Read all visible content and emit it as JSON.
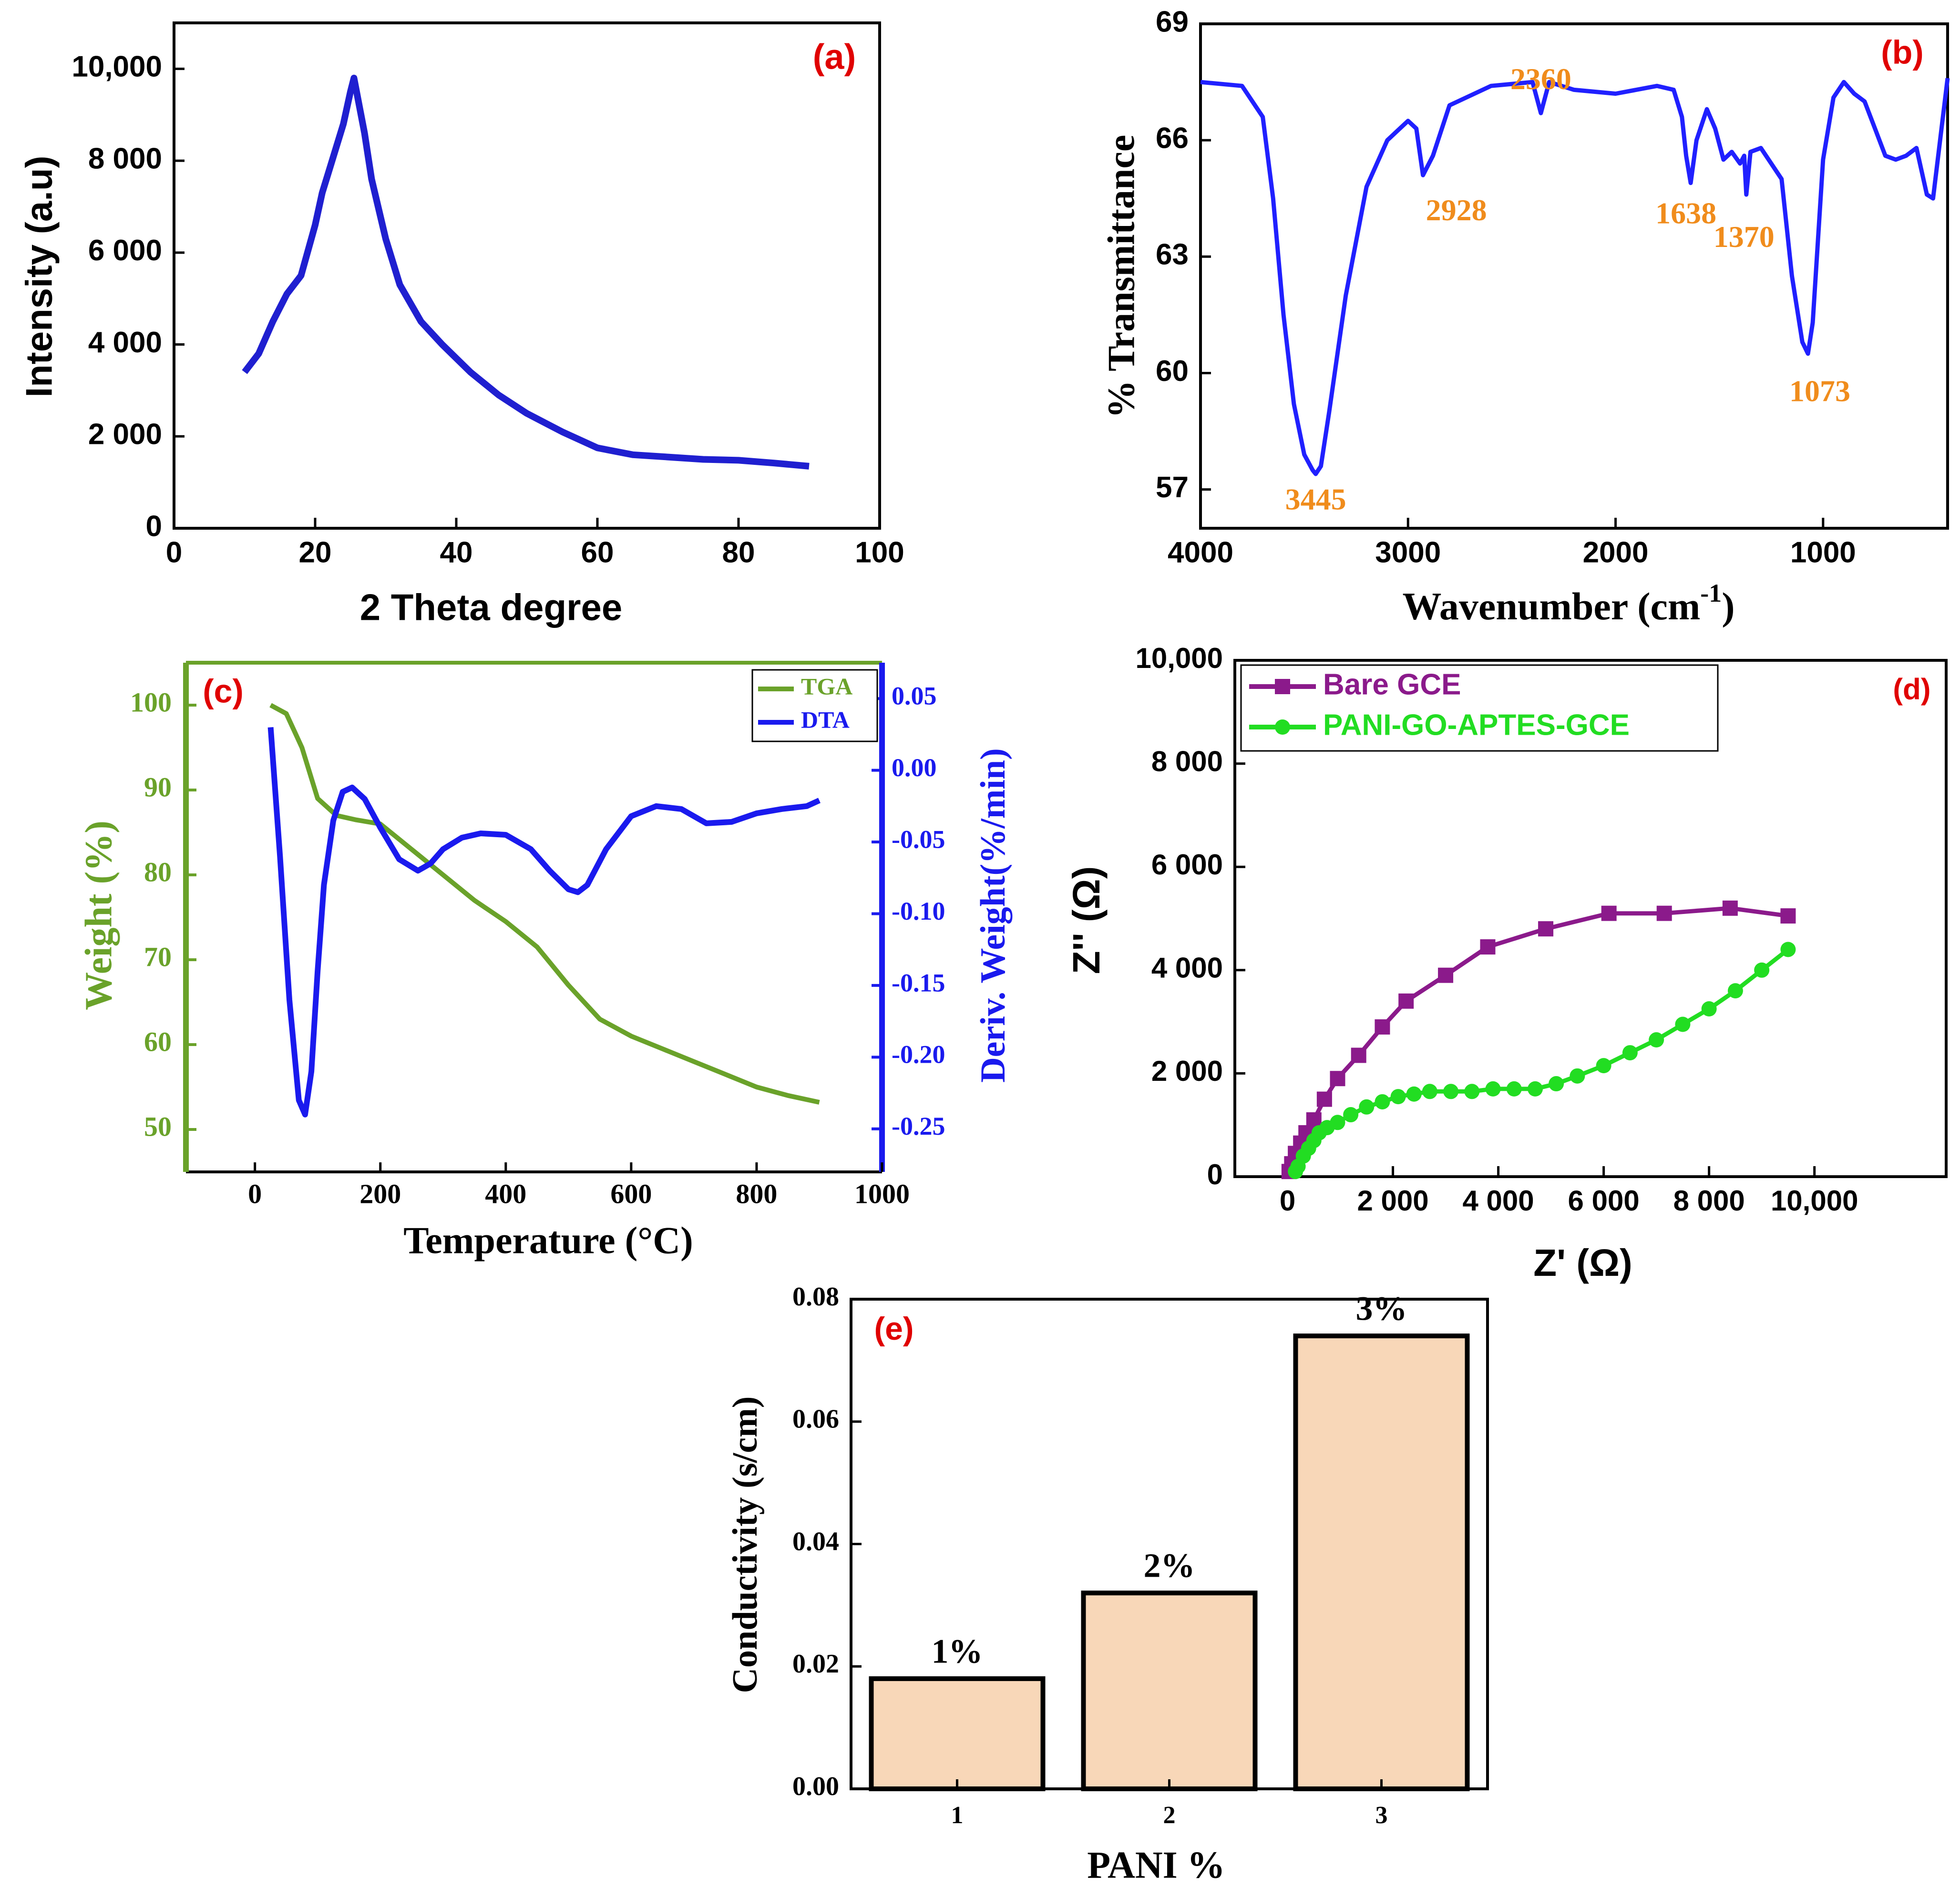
{
  "chart_data": [
    {
      "panel_label": "(a)",
      "type": "line",
      "xlabel": "2 Theta degree",
      "ylabel": "Intensity (a.u)",
      "xlim": [
        0,
        100
      ],
      "ylim": [
        0,
        11000
      ],
      "xticks": [
        0,
        20,
        40,
        60,
        80,
        100
      ],
      "xtick_labels": [
        "0",
        "20",
        "40",
        "60",
        "80",
        "100"
      ],
      "yticks": [
        0,
        2000,
        4000,
        6000,
        8000,
        10000
      ],
      "ytick_labels": [
        "0",
        "2 000",
        "4 000",
        "6 000",
        "8 000",
        "10,000"
      ],
      "series": [
        {
          "color": "#1f1fd0",
          "x": [
            10,
            12,
            14,
            16,
            18,
            20,
            21,
            22,
            23,
            24,
            25,
            25.5,
            26,
            27,
            28,
            30,
            32,
            35,
            38,
            42,
            46,
            50,
            55,
            60,
            65,
            70,
            75,
            80,
            85,
            90
          ],
          "y": [
            3400,
            3800,
            4500,
            5100,
            5500,
            6600,
            7300,
            7800,
            8300,
            8800,
            9500,
            9800,
            9400,
            8600,
            7600,
            6300,
            5300,
            4500,
            4000,
            3400,
            2900,
            2500,
            2100,
            1750,
            1600,
            1550,
            1500,
            1480,
            1420,
            1350
          ]
        }
      ]
    },
    {
      "panel_label": "(b)",
      "type": "line",
      "xlabel": "Wavenumber (cm",
      "xlabel_sup": "-1",
      "xlabel_end": ")",
      "ylabel": "% Transmittance",
      "xlim": [
        4000,
        400
      ],
      "ylim": [
        56,
        69
      ],
      "xticks": [
        4000,
        3000,
        2000,
        1000
      ],
      "xtick_labels": [
        "4000",
        "3000",
        "2000",
        "1000"
      ],
      "yticks": [
        57,
        60,
        63,
        66,
        69
      ],
      "ytick_labels": [
        "57",
        "60",
        "63",
        "66",
        "69"
      ],
      "series": [
        {
          "color": "#2020ff",
          "x": [
            4000,
            3800,
            3700,
            3650,
            3600,
            3550,
            3500,
            3460,
            3445,
            3420,
            3380,
            3300,
            3200,
            3100,
            3000,
            2960,
            2928,
            2880,
            2800,
            2600,
            2400,
            2360,
            2320,
            2200,
            2000,
            1800,
            1720,
            1680,
            1660,
            1638,
            1610,
            1560,
            1520,
            1480,
            1440,
            1400,
            1380,
            1370,
            1350,
            1300,
            1200,
            1150,
            1100,
            1073,
            1050,
            1000,
            950,
            900,
            850,
            800,
            750,
            700,
            650,
            600,
            550,
            500,
            470,
            400
          ],
          "y": [
            67.5,
            67.4,
            66.6,
            64.5,
            61.5,
            59.2,
            57.9,
            57.5,
            57.4,
            57.6,
            59.0,
            62.0,
            64.8,
            66.0,
            66.5,
            66.3,
            65.1,
            65.6,
            66.9,
            67.4,
            67.5,
            66.7,
            67.5,
            67.3,
            67.2,
            67.4,
            67.3,
            66.6,
            65.6,
            64.9,
            66.0,
            66.8,
            66.3,
            65.5,
            65.7,
            65.4,
            65.6,
            64.6,
            65.7,
            65.8,
            65.0,
            62.5,
            60.8,
            60.5,
            61.3,
            65.5,
            67.1,
            67.5,
            67.2,
            67.0,
            66.3,
            65.6,
            65.5,
            65.6,
            65.8,
            64.6,
            64.5,
            67.6
          ]
        }
      ],
      "annotations": [
        {
          "x": 3445,
          "y": 57.4,
          "text": "3445"
        },
        {
          "x": 2928,
          "y": 65.1,
          "text": "2928"
        },
        {
          "x": 2360,
          "y": 66.7,
          "text": "2360"
        },
        {
          "x": 1638,
          "y": 64.9,
          "text": "1638"
        },
        {
          "x": 1370,
          "y": 64.6,
          "text": "1370"
        },
        {
          "x": 1073,
          "y": 60.5,
          "text": "1073"
        }
      ]
    },
    {
      "panel_label": "(c)",
      "type": "line",
      "xlabel": "Temperature (°C)",
      "ylabel": "Weight (%)",
      "ylabel_right": "Deriv. Weight(%/min)",
      "xlim": [
        -110,
        1000
      ],
      "ylim": [
        45,
        105
      ],
      "ylim_right": [
        -0.28,
        0.075
      ],
      "xticks": [
        0,
        200,
        400,
        600,
        800,
        1000
      ],
      "xtick_labels": [
        "0",
        "200",
        "400",
        "600",
        "800",
        "1000"
      ],
      "yticks": [
        50,
        60,
        70,
        80,
        90,
        100
      ],
      "ytick_labels": [
        "50",
        "60",
        "70",
        "80",
        "90",
        "100"
      ],
      "yticks_right": [
        -0.25,
        -0.2,
        -0.15,
        -0.1,
        -0.05,
        0.0,
        0.05
      ],
      "ytick_labels_right": [
        "-0.25",
        "-0.20",
        "-0.15",
        "-0.10",
        "-0.05",
        "0.00",
        "0.05"
      ],
      "legend": [
        "TGA",
        "DTA"
      ],
      "legend_position": "top-right",
      "series": [
        {
          "name": "TGA",
          "axis": "left",
          "color": "#6aa22a",
          "x": [
            25,
            50,
            75,
            100,
            130,
            160,
            200,
            250,
            300,
            350,
            400,
            450,
            500,
            550,
            600,
            650,
            700,
            750,
            800,
            850,
            900
          ],
          "y": [
            100,
            99,
            95,
            89,
            87,
            86.5,
            86,
            83,
            80,
            77,
            74.5,
            71.5,
            67,
            63,
            61,
            59.5,
            58,
            56.5,
            55,
            54,
            53.2
          ]
        },
        {
          "name": "DTA",
          "axis": "right",
          "color": "#1a1aee",
          "x": [
            25,
            40,
            55,
            70,
            80,
            90,
            100,
            110,
            125,
            140,
            155,
            175,
            200,
            230,
            260,
            280,
            300,
            330,
            360,
            400,
            440,
            470,
            500,
            515,
            530,
            560,
            600,
            640,
            680,
            720,
            760,
            800,
            840,
            880,
            900
          ],
          "y": [
            0.03,
            -0.06,
            -0.16,
            -0.23,
            -0.24,
            -0.21,
            -0.14,
            -0.08,
            -0.035,
            -0.015,
            -0.012,
            -0.02,
            -0.04,
            -0.062,
            -0.07,
            -0.065,
            -0.055,
            -0.047,
            -0.044,
            -0.045,
            -0.055,
            -0.07,
            -0.083,
            -0.085,
            -0.08,
            -0.055,
            -0.032,
            -0.025,
            -0.027,
            -0.037,
            -0.036,
            -0.03,
            -0.027,
            -0.025,
            -0.021
          ]
        }
      ]
    },
    {
      "panel_label": "(d)",
      "type": "line",
      "xlabel": "Z' (Ω)",
      "ylabel": "Z'' (Ω)",
      "xlim": [
        -1000,
        12500
      ],
      "ylim": [
        0,
        10000
      ],
      "xticks": [
        0,
        2000,
        4000,
        6000,
        8000,
        10000
      ],
      "xtick_labels": [
        "0",
        "2 000",
        "4 000",
        "6 000",
        "8 000",
        "10,000"
      ],
      "yticks": [
        0,
        2000,
        4000,
        6000,
        8000,
        10000
      ],
      "ytick_labels": [
        "0",
        "2 000",
        "4 000",
        "6 000",
        "8 000",
        "10,000"
      ],
      "legend": [
        "Bare GCE",
        "PANI-GO-APTES-GCE"
      ],
      "legend_position": "top-left",
      "series": [
        {
          "name": "Bare GCE",
          "color": "#8b1a8b",
          "marker": "square",
          "x": [
            30,
            80,
            150,
            250,
            350,
            500,
            700,
            950,
            1350,
            1800,
            2250,
            3000,
            3800,
            4900,
            6100,
            7150,
            8400,
            9500
          ],
          "y": [
            100,
            250,
            450,
            650,
            850,
            1100,
            1500,
            1900,
            2350,
            2900,
            3400,
            3900,
            4450,
            4800,
            5100,
            5100,
            5200,
            5050
          ]
        },
        {
          "name": "PANI-GO-APTES-GCE",
          "color": "#22dd22",
          "marker": "circle",
          "x": [
            150,
            200,
            300,
            400,
            500,
            600,
            750,
            950,
            1200,
            1500,
            1800,
            2100,
            2400,
            2700,
            3100,
            3500,
            3900,
            4300,
            4700,
            5100,
            5500,
            6000,
            6500,
            7000,
            7500,
            8000,
            8500,
            9000,
            9500
          ],
          "y": [
            100,
            200,
            400,
            550,
            700,
            850,
            950,
            1050,
            1200,
            1350,
            1450,
            1550,
            1600,
            1650,
            1650,
            1650,
            1700,
            1700,
            1700,
            1800,
            1950,
            2150,
            2400,
            2650,
            2950,
            3250,
            3600,
            4000,
            4400
          ]
        }
      ]
    },
    {
      "panel_label": "(e)",
      "type": "bar",
      "xlabel": "PANI %",
      "ylabel": "Conductivity (s/cm)",
      "categories": [
        "1",
        "2",
        "3"
      ],
      "values": [
        0.018,
        0.032,
        0.074
      ],
      "bar_labels": [
        "1%",
        "2%",
        "3%"
      ],
      "bar_color": "#f8d7b8",
      "ylim": [
        0,
        0.08
      ],
      "yticks": [
        0,
        0.02,
        0.04,
        0.06,
        0.08
      ],
      "ytick_labels": [
        "0.00",
        "0.02",
        "0.04",
        "0.06",
        "0.08"
      ]
    }
  ]
}
